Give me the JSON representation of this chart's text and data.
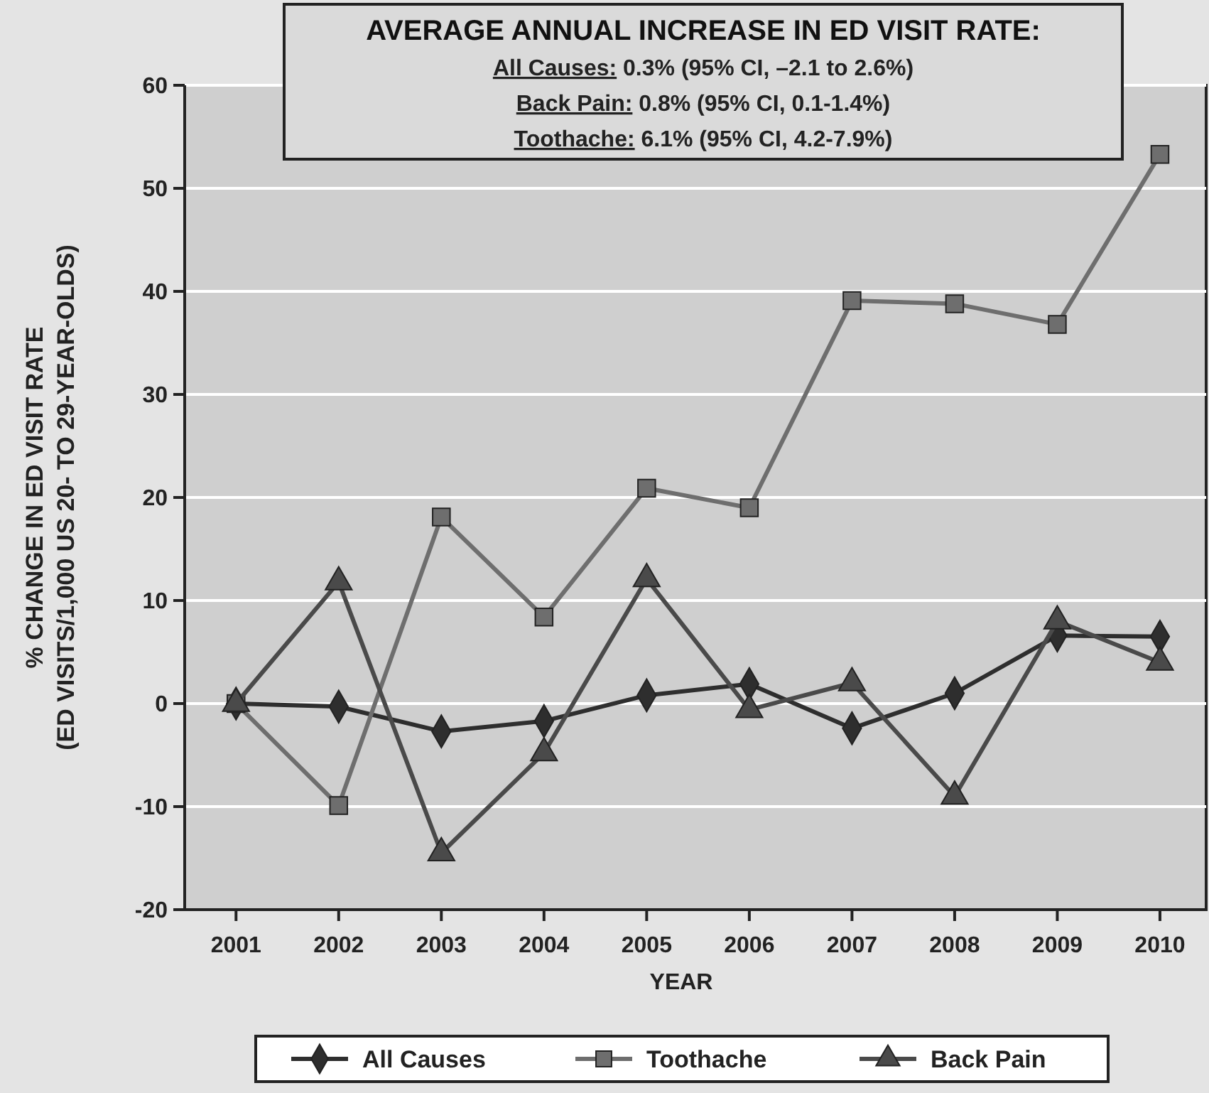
{
  "chart_data": {
    "type": "line",
    "title": "AVERAGE ANNUAL INCREASE IN ED VISIT RATE:",
    "annotations": [
      "All Causes: 0.3% (95% CI, –2.1 to 2.6%)",
      "Back Pain: 0.8% (95% CI, 0.1-1.4%)",
      "Toothache: 6.1% (95% CI, 4.2-7.9%)"
    ],
    "xlabel": "YEAR",
    "ylabel": "% CHANGE IN ED VISIT RATE\n(ED VISITS/1,000 US 20- TO 29-YEAR-OLDS)",
    "x": [
      2001,
      2002,
      2003,
      2004,
      2005,
      2006,
      2007,
      2008,
      2009,
      2010
    ],
    "xlim": [
      2000.5,
      2010.45
    ],
    "xticks": [
      2001,
      2002,
      2003,
      2004,
      2005,
      2006,
      2007,
      2008,
      2009,
      2010
    ],
    "ylim": [
      -20,
      60
    ],
    "yticks": [
      -20,
      -10,
      0,
      10,
      20,
      30,
      40,
      50,
      60
    ],
    "grid": "y",
    "legend": "bottom",
    "line_style": "solid",
    "series": [
      {
        "name": "All Causes",
        "color": "#2e2e2e",
        "marker": "diamond",
        "values": [
          0,
          -0.3,
          -2.7,
          -1.7,
          0.8,
          1.9,
          -2.4,
          1.0,
          6.6,
          6.5
        ]
      },
      {
        "name": "Toothache",
        "color": "#6e6e6e",
        "marker": "square",
        "values": [
          0,
          -9.9,
          18.1,
          8.4,
          20.9,
          19.0,
          39.1,
          38.8,
          36.8,
          53.3
        ]
      },
      {
        "name": "Back Pain",
        "color": "#4a4a4a",
        "marker": "triangle",
        "values": [
          0,
          11.8,
          -14.5,
          -4.8,
          12.1,
          -0.6,
          2.0,
          -9.0,
          8.0,
          4.0
        ]
      }
    ]
  }
}
